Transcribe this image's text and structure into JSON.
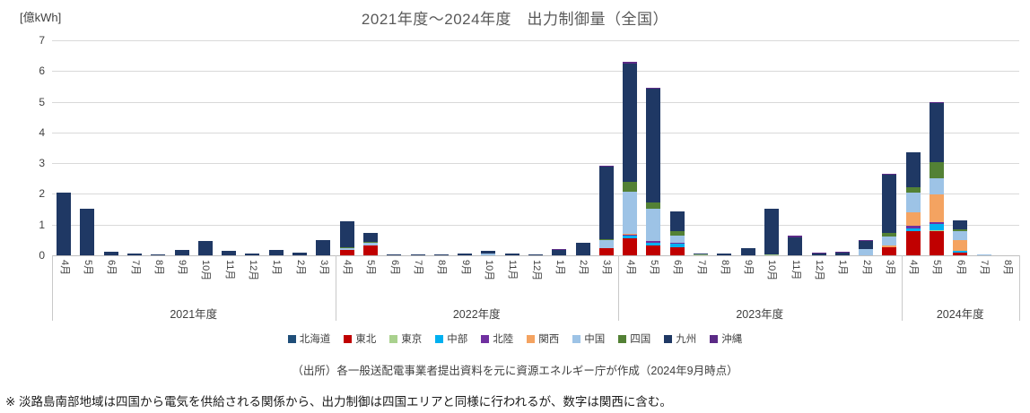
{
  "title": "2021年度～2024年度　出力制御量（全国）",
  "y_axis": {
    "unit_label": "[億kWh]"
  },
  "footer": {
    "source": "（出所）各一般送配電事業者提出資料を元に資源エネルギー庁が作成（2024年9月時点）",
    "note": "※ 淡路島南部地域は四国から電気を供給される関係から、出力制御は四国エリアと同様に行われるが、数字は関西に含む。"
  },
  "chart_data": {
    "type": "bar",
    "stacked": true,
    "title": "2021年度～2024年度　出力制御量（全国）",
    "ylabel": "[億kWh]",
    "ylim": [
      0,
      7
    ],
    "y_ticks": [
      0,
      1,
      2,
      3,
      4,
      5,
      6,
      7
    ],
    "grid": true,
    "legend_position": "bottom",
    "groups": [
      {
        "label": "2021年度",
        "months": 12
      },
      {
        "label": "2022年度",
        "months": 12
      },
      {
        "label": "2023年度",
        "months": 12
      },
      {
        "label": "2024年度",
        "months": 5
      }
    ],
    "categories": [
      "4月",
      "5月",
      "6月",
      "7月",
      "8月",
      "9月",
      "10月",
      "11月",
      "12月",
      "1月",
      "2月",
      "3月",
      "4月",
      "5月",
      "6月",
      "7月",
      "8月",
      "9月",
      "10月",
      "11月",
      "12月",
      "1月",
      "2月",
      "3月",
      "4月",
      "5月",
      "6月",
      "7月",
      "8月",
      "9月",
      "10月",
      "11月",
      "12月",
      "1月",
      "2月",
      "3月",
      "4月",
      "5月",
      "6月",
      "7月",
      "8月"
    ],
    "series": [
      {
        "name": "北海道",
        "color": "#1F4E79",
        "values": [
          0,
          0,
          0,
          0,
          0,
          0,
          0,
          0,
          0,
          0,
          0,
          0,
          0,
          0,
          0,
          0,
          0,
          0,
          0,
          0,
          0,
          0,
          0,
          0,
          0,
          0,
          0,
          0,
          0,
          0,
          0,
          0,
          0,
          0,
          0,
          0,
          0,
          0,
          0,
          0,
          0
        ]
      },
      {
        "name": "東北",
        "color": "#C00000",
        "values": [
          0,
          0,
          0,
          0,
          0,
          0,
          0,
          0,
          0,
          0,
          0,
          0,
          0.18,
          0.32,
          0,
          0,
          0,
          0,
          0,
          0,
          0,
          0,
          0,
          0.22,
          0.55,
          0.32,
          0.25,
          0,
          0,
          0,
          0,
          0,
          0,
          0,
          0,
          0.27,
          0.8,
          0.78,
          0.1,
          0,
          0
        ]
      },
      {
        "name": "東京",
        "color": "#A9D18E",
        "values": [
          0,
          0,
          0,
          0,
          0,
          0,
          0,
          0,
          0,
          0,
          0,
          0,
          0,
          0,
          0,
          0,
          0,
          0,
          0,
          0,
          0,
          0,
          0,
          0,
          0,
          0,
          0,
          0.04,
          0,
          0,
          0.04,
          0,
          0,
          0,
          0,
          0,
          0,
          0.05,
          0,
          0,
          0
        ]
      },
      {
        "name": "中部",
        "color": "#00B0F0",
        "values": [
          0,
          0,
          0,
          0,
          0,
          0,
          0,
          0,
          0,
          0,
          0,
          0,
          0,
          0,
          0,
          0,
          0,
          0,
          0,
          0,
          0,
          0,
          0,
          0,
          0.08,
          0.1,
          0.12,
          0,
          0,
          0,
          0,
          0,
          0,
          0,
          0,
          0,
          0.07,
          0.2,
          0.05,
          0,
          0
        ]
      },
      {
        "name": "北陸",
        "color": "#7030A0",
        "values": [
          0,
          0,
          0,
          0,
          0,
          0,
          0,
          0,
          0,
          0,
          0,
          0,
          0,
          0,
          0,
          0,
          0,
          0,
          0,
          0,
          0,
          0,
          0,
          0,
          0.05,
          0.04,
          0.03,
          0,
          0,
          0,
          0,
          0,
          0,
          0,
          0,
          0,
          0.08,
          0.06,
          0,
          0,
          0
        ]
      },
      {
        "name": "関西",
        "color": "#F4A361",
        "values": [
          0,
          0,
          0,
          0,
          0,
          0,
          0,
          0,
          0,
          0,
          0,
          0,
          0,
          0,
          0,
          0,
          0,
          0,
          0,
          0,
          0,
          0,
          0,
          0,
          0.03,
          0,
          0,
          0,
          0,
          0,
          0,
          0,
          0,
          0,
          0,
          0.06,
          0.45,
          0.88,
          0.35,
          0,
          0
        ]
      },
      {
        "name": "中国",
        "color": "#9DC3E6",
        "values": [
          0,
          0,
          0,
          0,
          0,
          0,
          0,
          0,
          0,
          0,
          0,
          0,
          0.05,
          0.08,
          0,
          0,
          0,
          0,
          0.05,
          0,
          0,
          0,
          0,
          0.27,
          1.35,
          1.05,
          0.25,
          0,
          0,
          0,
          0,
          0,
          0,
          0,
          0.2,
          0.27,
          0.63,
          0.55,
          0.3,
          0.04,
          0
        ]
      },
      {
        "name": "四国",
        "color": "#538135",
        "values": [
          0,
          0,
          0,
          0,
          0,
          0,
          0,
          0,
          0,
          0,
          0,
          0,
          0.04,
          0.05,
          0,
          0,
          0,
          0,
          0,
          0,
          0,
          0,
          0,
          0.05,
          0.33,
          0.2,
          0.15,
          0,
          0,
          0,
          0,
          0,
          0,
          0,
          0,
          0.12,
          0.2,
          0.5,
          0.05,
          0,
          0
        ]
      },
      {
        "name": "九州",
        "color": "#1F3864",
        "values": [
          2.05,
          1.52,
          0.13,
          0.07,
          0.01,
          0.18,
          0.46,
          0.15,
          0.05,
          0.18,
          0.08,
          0.5,
          0.85,
          0.27,
          0.04,
          0.04,
          0.04,
          0.05,
          0.09,
          0.07,
          0.04,
          0.17,
          0.42,
          2.36,
          3.85,
          3.72,
          0.63,
          0.01,
          0.05,
          0.24,
          1.48,
          0.58,
          0.05,
          0.09,
          0.28,
          1.9,
          1.12,
          1.95,
          0.3,
          0,
          0
        ]
      },
      {
        "name": "沖縄",
        "color": "#5B2A86",
        "values": [
          0,
          0,
          0,
          0,
          0,
          0,
          0,
          0,
          0,
          0,
          0,
          0,
          0,
          0,
          0,
          0,
          0,
          0,
          0,
          0,
          0,
          0.04,
          0,
          0.03,
          0.05,
          0.02,
          0,
          0,
          0,
          0,
          0,
          0.05,
          0.02,
          0.03,
          0.02,
          0.03,
          0,
          0.02,
          0,
          0,
          0
        ]
      }
    ]
  }
}
